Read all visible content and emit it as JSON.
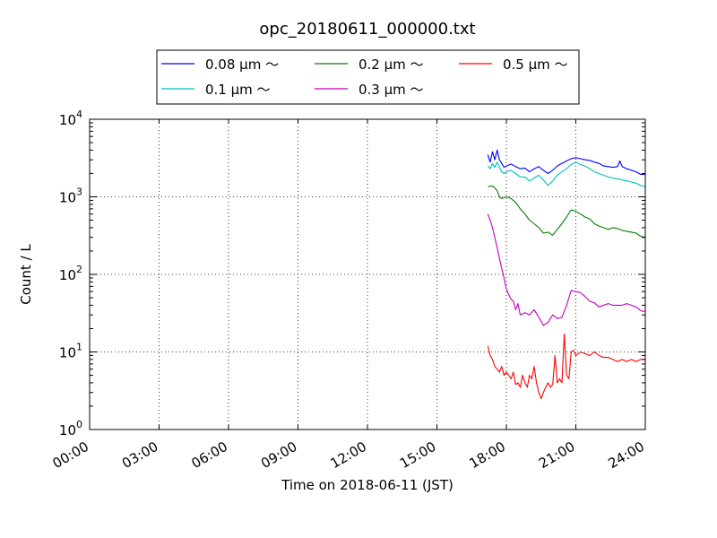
{
  "chart_data": {
    "type": "line",
    "title": "opc_20180611_000000.txt",
    "xlabel": "Time on 2018-06-11 (JST)",
    "ylabel": "Count / L",
    "x_unit": "hours",
    "xlim": [
      0,
      24
    ],
    "ylim": [
      1,
      10000
    ],
    "yscale": "log",
    "grid": true,
    "legend_placement": "top-center, above plot",
    "x_ticks": [
      {
        "value": 0,
        "label": "00:00"
      },
      {
        "value": 3,
        "label": "03:00"
      },
      {
        "value": 6,
        "label": "06:00"
      },
      {
        "value": 9,
        "label": "09:00"
      },
      {
        "value": 12,
        "label": "12:00"
      },
      {
        "value": 15,
        "label": "15:00"
      },
      {
        "value": 18,
        "label": "18:00"
      },
      {
        "value": 21,
        "label": "21:00"
      },
      {
        "value": 24,
        "label": "24:00"
      }
    ],
    "y_ticks": [
      {
        "value": 1,
        "base": "10",
        "exp": "0"
      },
      {
        "value": 10,
        "base": "10",
        "exp": "1"
      },
      {
        "value": 100,
        "base": "10",
        "exp": "2"
      },
      {
        "value": 1000,
        "base": "10",
        "exp": "3"
      },
      {
        "value": 10000,
        "base": "10",
        "exp": "4"
      }
    ],
    "series": [
      {
        "name": "0.08 μm ～",
        "color": "#0000ff",
        "points": [
          [
            17.2,
            3500
          ],
          [
            17.3,
            2800
          ],
          [
            17.4,
            3800
          ],
          [
            17.5,
            3000
          ],
          [
            17.6,
            4000
          ],
          [
            17.7,
            3000
          ],
          [
            17.8,
            2700
          ],
          [
            17.9,
            2400
          ],
          [
            18.0,
            2500
          ],
          [
            18.2,
            2650
          ],
          [
            18.4,
            2450
          ],
          [
            18.6,
            2300
          ],
          [
            18.8,
            2350
          ],
          [
            19.0,
            2100
          ],
          [
            19.2,
            2300
          ],
          [
            19.4,
            2450
          ],
          [
            19.6,
            2200
          ],
          [
            19.8,
            2000
          ],
          [
            20.0,
            2200
          ],
          [
            20.2,
            2500
          ],
          [
            20.4,
            2700
          ],
          [
            20.6,
            2900
          ],
          [
            20.8,
            3100
          ],
          [
            21.0,
            3200
          ],
          [
            21.2,
            3100
          ],
          [
            21.4,
            3000
          ],
          [
            21.6,
            2950
          ],
          [
            21.8,
            2800
          ],
          [
            22.0,
            2700
          ],
          [
            22.2,
            2500
          ],
          [
            22.4,
            2450
          ],
          [
            22.6,
            2400
          ],
          [
            22.8,
            2450
          ],
          [
            22.9,
            2900
          ],
          [
            23.0,
            2450
          ],
          [
            23.2,
            2300
          ],
          [
            23.4,
            2200
          ],
          [
            23.6,
            2100
          ],
          [
            23.8,
            1950
          ],
          [
            24.0,
            1950
          ]
        ]
      },
      {
        "name": "0.1 μm ～",
        "color": "#00bfbf",
        "points": [
          [
            17.2,
            2500
          ],
          [
            17.3,
            2300
          ],
          [
            17.4,
            2700
          ],
          [
            17.5,
            2400
          ],
          [
            17.6,
            2800
          ],
          [
            17.7,
            2400
          ],
          [
            17.8,
            2100
          ],
          [
            17.9,
            2000
          ],
          [
            18.0,
            2100
          ],
          [
            18.2,
            2200
          ],
          [
            18.4,
            2000
          ],
          [
            18.6,
            1800
          ],
          [
            18.8,
            1800
          ],
          [
            19.0,
            1600
          ],
          [
            19.2,
            1750
          ],
          [
            19.4,
            1900
          ],
          [
            19.6,
            1650
          ],
          [
            19.8,
            1400
          ],
          [
            20.0,
            1600
          ],
          [
            20.2,
            1900
          ],
          [
            20.4,
            2100
          ],
          [
            20.6,
            2300
          ],
          [
            20.8,
            2600
          ],
          [
            21.0,
            2800
          ],
          [
            21.2,
            2600
          ],
          [
            21.4,
            2500
          ],
          [
            21.6,
            2300
          ],
          [
            21.8,
            2100
          ],
          [
            22.0,
            2000
          ],
          [
            22.2,
            1900
          ],
          [
            22.4,
            1800
          ],
          [
            22.6,
            1750
          ],
          [
            22.8,
            1700
          ],
          [
            23.0,
            1650
          ],
          [
            23.2,
            1600
          ],
          [
            23.4,
            1550
          ],
          [
            23.6,
            1500
          ],
          [
            23.8,
            1400
          ],
          [
            24.0,
            1350
          ]
        ]
      },
      {
        "name": "0.2 μm ～",
        "color": "#008000",
        "points": [
          [
            17.2,
            1350
          ],
          [
            17.4,
            1380
          ],
          [
            17.5,
            1300
          ],
          [
            17.6,
            1200
          ],
          [
            17.7,
            1000
          ],
          [
            17.8,
            950
          ],
          [
            18.0,
            1000
          ],
          [
            18.2,
            950
          ],
          [
            18.4,
            850
          ],
          [
            18.6,
            700
          ],
          [
            18.8,
            600
          ],
          [
            19.0,
            500
          ],
          [
            19.2,
            450
          ],
          [
            19.4,
            400
          ],
          [
            19.6,
            340
          ],
          [
            19.8,
            350
          ],
          [
            20.0,
            320
          ],
          [
            20.2,
            380
          ],
          [
            20.4,
            450
          ],
          [
            20.6,
            550
          ],
          [
            20.8,
            680
          ],
          [
            21.0,
            650
          ],
          [
            21.2,
            600
          ],
          [
            21.4,
            550
          ],
          [
            21.6,
            520
          ],
          [
            21.8,
            450
          ],
          [
            22.0,
            420
          ],
          [
            22.2,
            400
          ],
          [
            22.4,
            380
          ],
          [
            22.6,
            400
          ],
          [
            22.8,
            390
          ],
          [
            23.0,
            370
          ],
          [
            23.2,
            360
          ],
          [
            23.4,
            350
          ],
          [
            23.6,
            340
          ],
          [
            23.8,
            310
          ],
          [
            24.0,
            300
          ]
        ]
      },
      {
        "name": "0.3 μm ～",
        "color": "#bf00bf",
        "points": [
          [
            17.2,
            600
          ],
          [
            17.3,
            500
          ],
          [
            17.4,
            400
          ],
          [
            17.5,
            300
          ],
          [
            17.6,
            220
          ],
          [
            17.7,
            160
          ],
          [
            17.8,
            120
          ],
          [
            17.9,
            90
          ],
          [
            18.0,
            65
          ],
          [
            18.1,
            55
          ],
          [
            18.2,
            48
          ],
          [
            18.3,
            45
          ],
          [
            18.4,
            35
          ],
          [
            18.5,
            42
          ],
          [
            18.6,
            30
          ],
          [
            18.8,
            32
          ],
          [
            19.0,
            30
          ],
          [
            19.2,
            35
          ],
          [
            19.4,
            28
          ],
          [
            19.6,
            22
          ],
          [
            19.8,
            24
          ],
          [
            20.0,
            30
          ],
          [
            20.2,
            27
          ],
          [
            20.4,
            28
          ],
          [
            20.6,
            40
          ],
          [
            20.8,
            62
          ],
          [
            21.0,
            60
          ],
          [
            21.2,
            58
          ],
          [
            21.4,
            52
          ],
          [
            21.6,
            45
          ],
          [
            21.8,
            43
          ],
          [
            22.0,
            38
          ],
          [
            22.2,
            40
          ],
          [
            22.4,
            42
          ],
          [
            22.6,
            40
          ],
          [
            22.8,
            40
          ],
          [
            23.0,
            40
          ],
          [
            23.2,
            42
          ],
          [
            23.4,
            40
          ],
          [
            23.6,
            38
          ],
          [
            23.8,
            34
          ],
          [
            24.0,
            33
          ]
        ]
      },
      {
        "name": "0.5 μm ～",
        "color": "#ff0000",
        "points": [
          [
            17.2,
            12
          ],
          [
            17.3,
            9
          ],
          [
            17.4,
            8
          ],
          [
            17.5,
            6.5
          ],
          [
            17.6,
            6
          ],
          [
            17.7,
            5.5
          ],
          [
            17.8,
            6.5
          ],
          [
            17.9,
            5
          ],
          [
            18.0,
            5.5
          ],
          [
            18.1,
            5
          ],
          [
            18.2,
            4.5
          ],
          [
            18.3,
            5.5
          ],
          [
            18.4,
            3.8
          ],
          [
            18.5,
            4
          ],
          [
            18.6,
            3.5
          ],
          [
            18.7,
            5
          ],
          [
            18.8,
            4
          ],
          [
            18.9,
            3.5
          ],
          [
            19.0,
            5
          ],
          [
            19.1,
            4.5
          ],
          [
            19.2,
            6.5
          ],
          [
            19.3,
            4
          ],
          [
            19.4,
            3
          ],
          [
            19.5,
            2.5
          ],
          [
            19.6,
            3
          ],
          [
            19.7,
            3.5
          ],
          [
            19.8,
            4
          ],
          [
            19.9,
            3.5
          ],
          [
            20.0,
            3.8
          ],
          [
            20.1,
            9
          ],
          [
            20.2,
            4
          ],
          [
            20.3,
            4.5
          ],
          [
            20.4,
            4
          ],
          [
            20.5,
            17
          ],
          [
            20.6,
            5
          ],
          [
            20.7,
            4.5
          ],
          [
            20.8,
            10
          ],
          [
            20.9,
            10.5
          ],
          [
            21.0,
            9
          ],
          [
            21.2,
            10
          ],
          [
            21.4,
            9.5
          ],
          [
            21.6,
            9
          ],
          [
            21.8,
            10
          ],
          [
            22.0,
            9
          ],
          [
            22.2,
            8.5
          ],
          [
            22.4,
            8.5
          ],
          [
            22.6,
            8
          ],
          [
            22.8,
            7.5
          ],
          [
            23.0,
            8
          ],
          [
            23.2,
            7.5
          ],
          [
            23.4,
            8
          ],
          [
            23.6,
            7.5
          ],
          [
            23.8,
            8
          ],
          [
            24.0,
            8
          ]
        ]
      }
    ]
  }
}
